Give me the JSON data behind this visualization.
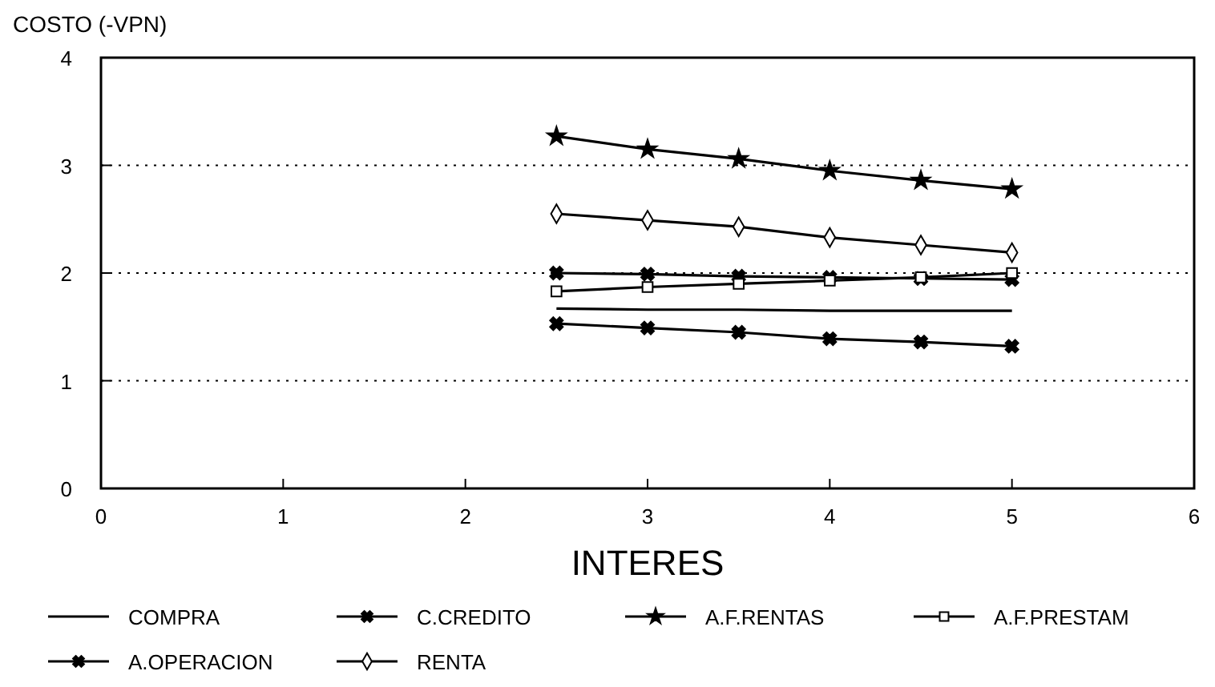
{
  "chart_data": {
    "type": "line",
    "ylabel": "COSTO (-VPN)",
    "xlabel": "INTERES",
    "x": [
      2.5,
      3,
      3.5,
      4,
      4.5,
      5
    ],
    "xlim": [
      0,
      6
    ],
    "xticks": [
      0,
      1,
      2,
      3,
      4,
      5,
      6
    ],
    "ylim": [
      0,
      4
    ],
    "yticks": [
      0,
      1,
      2,
      3,
      4
    ],
    "grid": "y",
    "legend": "bottom",
    "line_style": "solid",
    "series": [
      {
        "name": "COMPRA",
        "color": "#000000",
        "marker": "none",
        "values": [
          1.67,
          1.66,
          1.66,
          1.65,
          1.65,
          1.65
        ]
      },
      {
        "name": "C.CREDITO",
        "color": "#000000",
        "marker": "cross",
        "values": [
          2.0,
          1.99,
          1.97,
          1.96,
          1.95,
          1.94
        ]
      },
      {
        "name": "A.F.RENTAS",
        "color": "#000000",
        "marker": "star",
        "values": [
          3.27,
          3.15,
          3.06,
          2.95,
          2.86,
          2.78
        ]
      },
      {
        "name": "A.F.PRESTAM",
        "color": "#000000",
        "marker": "square",
        "values": [
          1.83,
          1.87,
          1.9,
          1.93,
          1.96,
          2.0
        ]
      },
      {
        "name": "A.OPERACION",
        "color": "#000000",
        "marker": "cross",
        "values": [
          1.53,
          1.49,
          1.45,
          1.39,
          1.36,
          1.32
        ]
      },
      {
        "name": "RENTA",
        "color": "#000000",
        "marker": "diamond",
        "values": [
          2.55,
          2.49,
          2.43,
          2.33,
          2.26,
          2.19
        ]
      }
    ]
  }
}
